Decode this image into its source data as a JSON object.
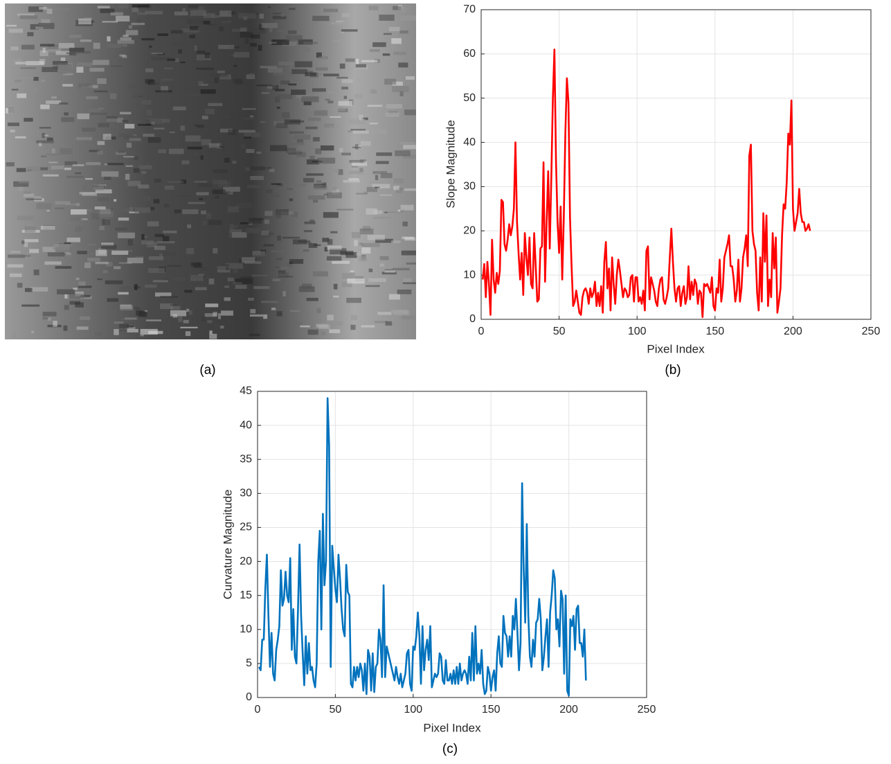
{
  "image": {
    "caption": "(a)"
  },
  "chart_data": [
    {
      "type": "line",
      "caption": "(b)",
      "xlabel": "Pixel Index",
      "ylabel": "Slope Magnitude",
      "color": "#ff0000",
      "grid": true,
      "xlim": [
        0,
        250
      ],
      "xticks": [
        0,
        50,
        100,
        150,
        200,
        250
      ],
      "ylim": [
        0,
        70
      ],
      "yticks": [
        0,
        10,
        20,
        30,
        40,
        50,
        60,
        70
      ],
      "x": [
        1,
        2,
        3,
        4,
        5,
        6,
        7,
        8,
        9,
        10,
        11,
        12,
        13,
        14,
        15,
        16,
        17,
        18,
        19,
        20,
        21,
        22,
        23,
        24,
        25,
        26,
        27,
        28,
        29,
        30,
        31,
        32,
        33,
        34,
        35,
        36,
        37,
        38,
        39,
        40,
        41,
        42,
        43,
        44,
        45,
        46,
        47,
        48,
        49,
        50,
        51,
        52,
        53,
        54,
        55,
        56,
        57,
        58,
        59,
        60,
        61,
        62,
        63,
        64,
        65,
        66,
        67,
        68,
        69,
        70,
        71,
        72,
        73,
        74,
        75,
        76,
        77,
        78,
        79,
        80,
        81,
        82,
        83,
        84,
        85,
        86,
        87,
        88,
        89,
        90,
        91,
        92,
        93,
        94,
        95,
        96,
        97,
        98,
        99,
        100,
        101,
        102,
        103,
        104,
        105,
        106,
        107,
        108,
        109,
        110,
        111,
        112,
        113,
        114,
        115,
        116,
        117,
        118,
        119,
        120,
        121,
        122,
        123,
        124,
        125,
        126,
        127,
        128,
        129,
        130,
        131,
        132,
        133,
        134,
        135,
        136,
        137,
        138,
        139,
        140,
        141,
        142,
        143,
        144,
        145,
        146,
        147,
        148,
        149,
        150,
        151,
        152,
        153,
        154,
        155,
        156,
        157,
        158,
        159,
        160,
        161,
        162,
        163,
        164,
        165,
        166,
        167,
        168,
        169,
        170,
        171,
        172,
        173,
        174,
        175,
        176,
        177,
        178,
        179,
        180,
        181,
        182,
        183,
        184,
        185,
        186,
        187,
        188,
        189,
        190,
        191,
        192,
        193,
        194,
        195,
        196,
        197,
        198,
        199,
        200,
        201,
        202,
        203,
        204,
        205,
        206,
        207,
        208,
        209,
        210,
        211
      ],
      "values": [
        9,
        12.5,
        5,
        13,
        8,
        1,
        18,
        9,
        6,
        10.5,
        8,
        11,
        27,
        26.5,
        17,
        15.5,
        18,
        21.5,
        19,
        21,
        25,
        40,
        22,
        15,
        9,
        15,
        5.5,
        19.5,
        14,
        10,
        18.5,
        8,
        7,
        19.5,
        12,
        4,
        4.5,
        16,
        16.5,
        35.5,
        8.5,
        22,
        33.5,
        16,
        32,
        50,
        61,
        36,
        22,
        15,
        25.5,
        9,
        23,
        42,
        54.5,
        49,
        23,
        12,
        3,
        4,
        6.5,
        4,
        1.5,
        1,
        5,
        6.5,
        7,
        6,
        3.5,
        7,
        5,
        6,
        8.5,
        3,
        6,
        3,
        7.5,
        1.5,
        13,
        17.5,
        7,
        11.5,
        2,
        14,
        8,
        3.5,
        10,
        13.5,
        11,
        8,
        5,
        7,
        6.5,
        5,
        5.5,
        9.5,
        10,
        4,
        9.5,
        9.5,
        4,
        5,
        3.5,
        6.5,
        2,
        15.5,
        16.5,
        4.5,
        9.5,
        8,
        6.5,
        4,
        3,
        7,
        9,
        9.5,
        4.5,
        3.5,
        5,
        7,
        14,
        20.5,
        13,
        7,
        4,
        7,
        7.5,
        3,
        6,
        7.5,
        3.5,
        5,
        12,
        4.5,
        8.5,
        5.5,
        9,
        8,
        3.5,
        6.5,
        6,
        0.5,
        8,
        7.5,
        8,
        7,
        6,
        9.5,
        3,
        2,
        7,
        6,
        13.5,
        4,
        7,
        14,
        15.5,
        17,
        19,
        12,
        12,
        9,
        4,
        6.5,
        13.5,
        4,
        7,
        14,
        16,
        19,
        12,
        37,
        39.5,
        20,
        17,
        15.5,
        6,
        2,
        14,
        4,
        24,
        13,
        23.5,
        3,
        9,
        5,
        19.5,
        11.5,
        18.5,
        1.5,
        4,
        7,
        19,
        26,
        25,
        31,
        42,
        39.5,
        49.5,
        25,
        20,
        22,
        24,
        29.5,
        24,
        22,
        22,
        20,
        20.5,
        21.5,
        20
      ]
    },
    {
      "type": "line",
      "caption": "(c)",
      "xlabel": "Pixel Index",
      "ylabel": "Curvature Magnitude",
      "color": "#0072bd",
      "grid": true,
      "xlim": [
        0,
        250
      ],
      "xticks": [
        0,
        50,
        100,
        150,
        200,
        250
      ],
      "ylim": [
        0,
        45
      ],
      "yticks": [
        0,
        5,
        10,
        15,
        20,
        25,
        30,
        35,
        40,
        45
      ],
      "x": [
        1,
        2,
        3,
        4,
        5,
        6,
        7,
        8,
        9,
        10,
        11,
        12,
        13,
        14,
        15,
        16,
        17,
        18,
        19,
        20,
        21,
        22,
        23,
        24,
        25,
        26,
        27,
        28,
        29,
        30,
        31,
        32,
        33,
        34,
        35,
        36,
        37,
        38,
        39,
        40,
        41,
        42,
        43,
        44,
        45,
        46,
        47,
        48,
        49,
        50,
        51,
        52,
        53,
        54,
        55,
        56,
        57,
        58,
        59,
        60,
        61,
        62,
        63,
        64,
        65,
        66,
        67,
        68,
        69,
        70,
        71,
        72,
        73,
        74,
        75,
        76,
        77,
        78,
        79,
        80,
        81,
        82,
        83,
        84,
        85,
        86,
        87,
        88,
        89,
        90,
        91,
        92,
        93,
        94,
        95,
        96,
        97,
        98,
        99,
        100,
        101,
        102,
        103,
        104,
        105,
        106,
        107,
        108,
        109,
        110,
        111,
        112,
        113,
        114,
        115,
        116,
        117,
        118,
        119,
        120,
        121,
        122,
        123,
        124,
        125,
        126,
        127,
        128,
        129,
        130,
        131,
        132,
        133,
        134,
        135,
        136,
        137,
        138,
        139,
        140,
        141,
        142,
        143,
        144,
        145,
        146,
        147,
        148,
        149,
        150,
        151,
        152,
        153,
        154,
        155,
        156,
        157,
        158,
        159,
        160,
        161,
        162,
        163,
        164,
        165,
        166,
        167,
        168,
        169,
        170,
        171,
        172,
        173,
        174,
        175,
        176,
        177,
        178,
        179,
        180,
        181,
        182,
        183,
        184,
        185,
        186,
        187,
        188,
        189,
        190,
        191,
        192,
        193,
        194,
        195,
        196,
        197,
        198,
        199,
        200,
        201,
        202,
        203,
        204,
        205,
        206,
        207,
        208,
        209,
        210,
        211
      ],
      "values": [
        4.5,
        4,
        8.5,
        8.5,
        16,
        21,
        12,
        4.5,
        9.5,
        3.5,
        2.5,
        7,
        8.5,
        10.5,
        18.7,
        13.5,
        14.5,
        18.5,
        15,
        14,
        20.5,
        7,
        13,
        6,
        5,
        13,
        22.5,
        12,
        6.5,
        1.8,
        9,
        3.5,
        8,
        4,
        4.5,
        2.5,
        1.5,
        5,
        20,
        24.5,
        10,
        27,
        16.5,
        20,
        44,
        37,
        4.5,
        22.3,
        19,
        16,
        14,
        21,
        17.5,
        13,
        10,
        9,
        19.5,
        15.5,
        15,
        2,
        1.5,
        4.5,
        2.5,
        4.5,
        3,
        5,
        4,
        1,
        5,
        0.5,
        7,
        6,
        1,
        6.5,
        0.8,
        4.5,
        5,
        10,
        8.5,
        3,
        16.5,
        3,
        7.5,
        6.5,
        5.5,
        4.5,
        3.5,
        2.5,
        4.5,
        3,
        2,
        3.5,
        1.5,
        2.5,
        3.5,
        6.5,
        7,
        2,
        1,
        7.5,
        7,
        9,
        12.5,
        9,
        2,
        10.5,
        4,
        7,
        8.5,
        5.5,
        10.5,
        1.5,
        2.5,
        3.5,
        3,
        3.5,
        6.5,
        6,
        2.5,
        2,
        5.5,
        2.5,
        2.5,
        3.5,
        2,
        4,
        2,
        4.5,
        2,
        5,
        2.5,
        3.5,
        4,
        3.5,
        2,
        6,
        2.5,
        9.5,
        2.5,
        10.5,
        3.5,
        5,
        3.5,
        7,
        2,
        0.5,
        1,
        4.5,
        3.5,
        1,
        3,
        4,
        1,
        6.5,
        9,
        5,
        4.5,
        12,
        9.5,
        9,
        6,
        9,
        6,
        12,
        10,
        14.5,
        9.5,
        4,
        8,
        31.5,
        19,
        11,
        25.5,
        12,
        6,
        4.5,
        8.5,
        6,
        11,
        11.5,
        14.5,
        11.5,
        4,
        6,
        9,
        11.5,
        4.5,
        12.5,
        15,
        18.7,
        17.5,
        10,
        11.5,
        7.5,
        15.7,
        14.5,
        3.5,
        15,
        1,
        0.3,
        11.5,
        10.5,
        12,
        7,
        13,
        13.5,
        8,
        8,
        6,
        10,
        2.5
      ]
    }
  ]
}
